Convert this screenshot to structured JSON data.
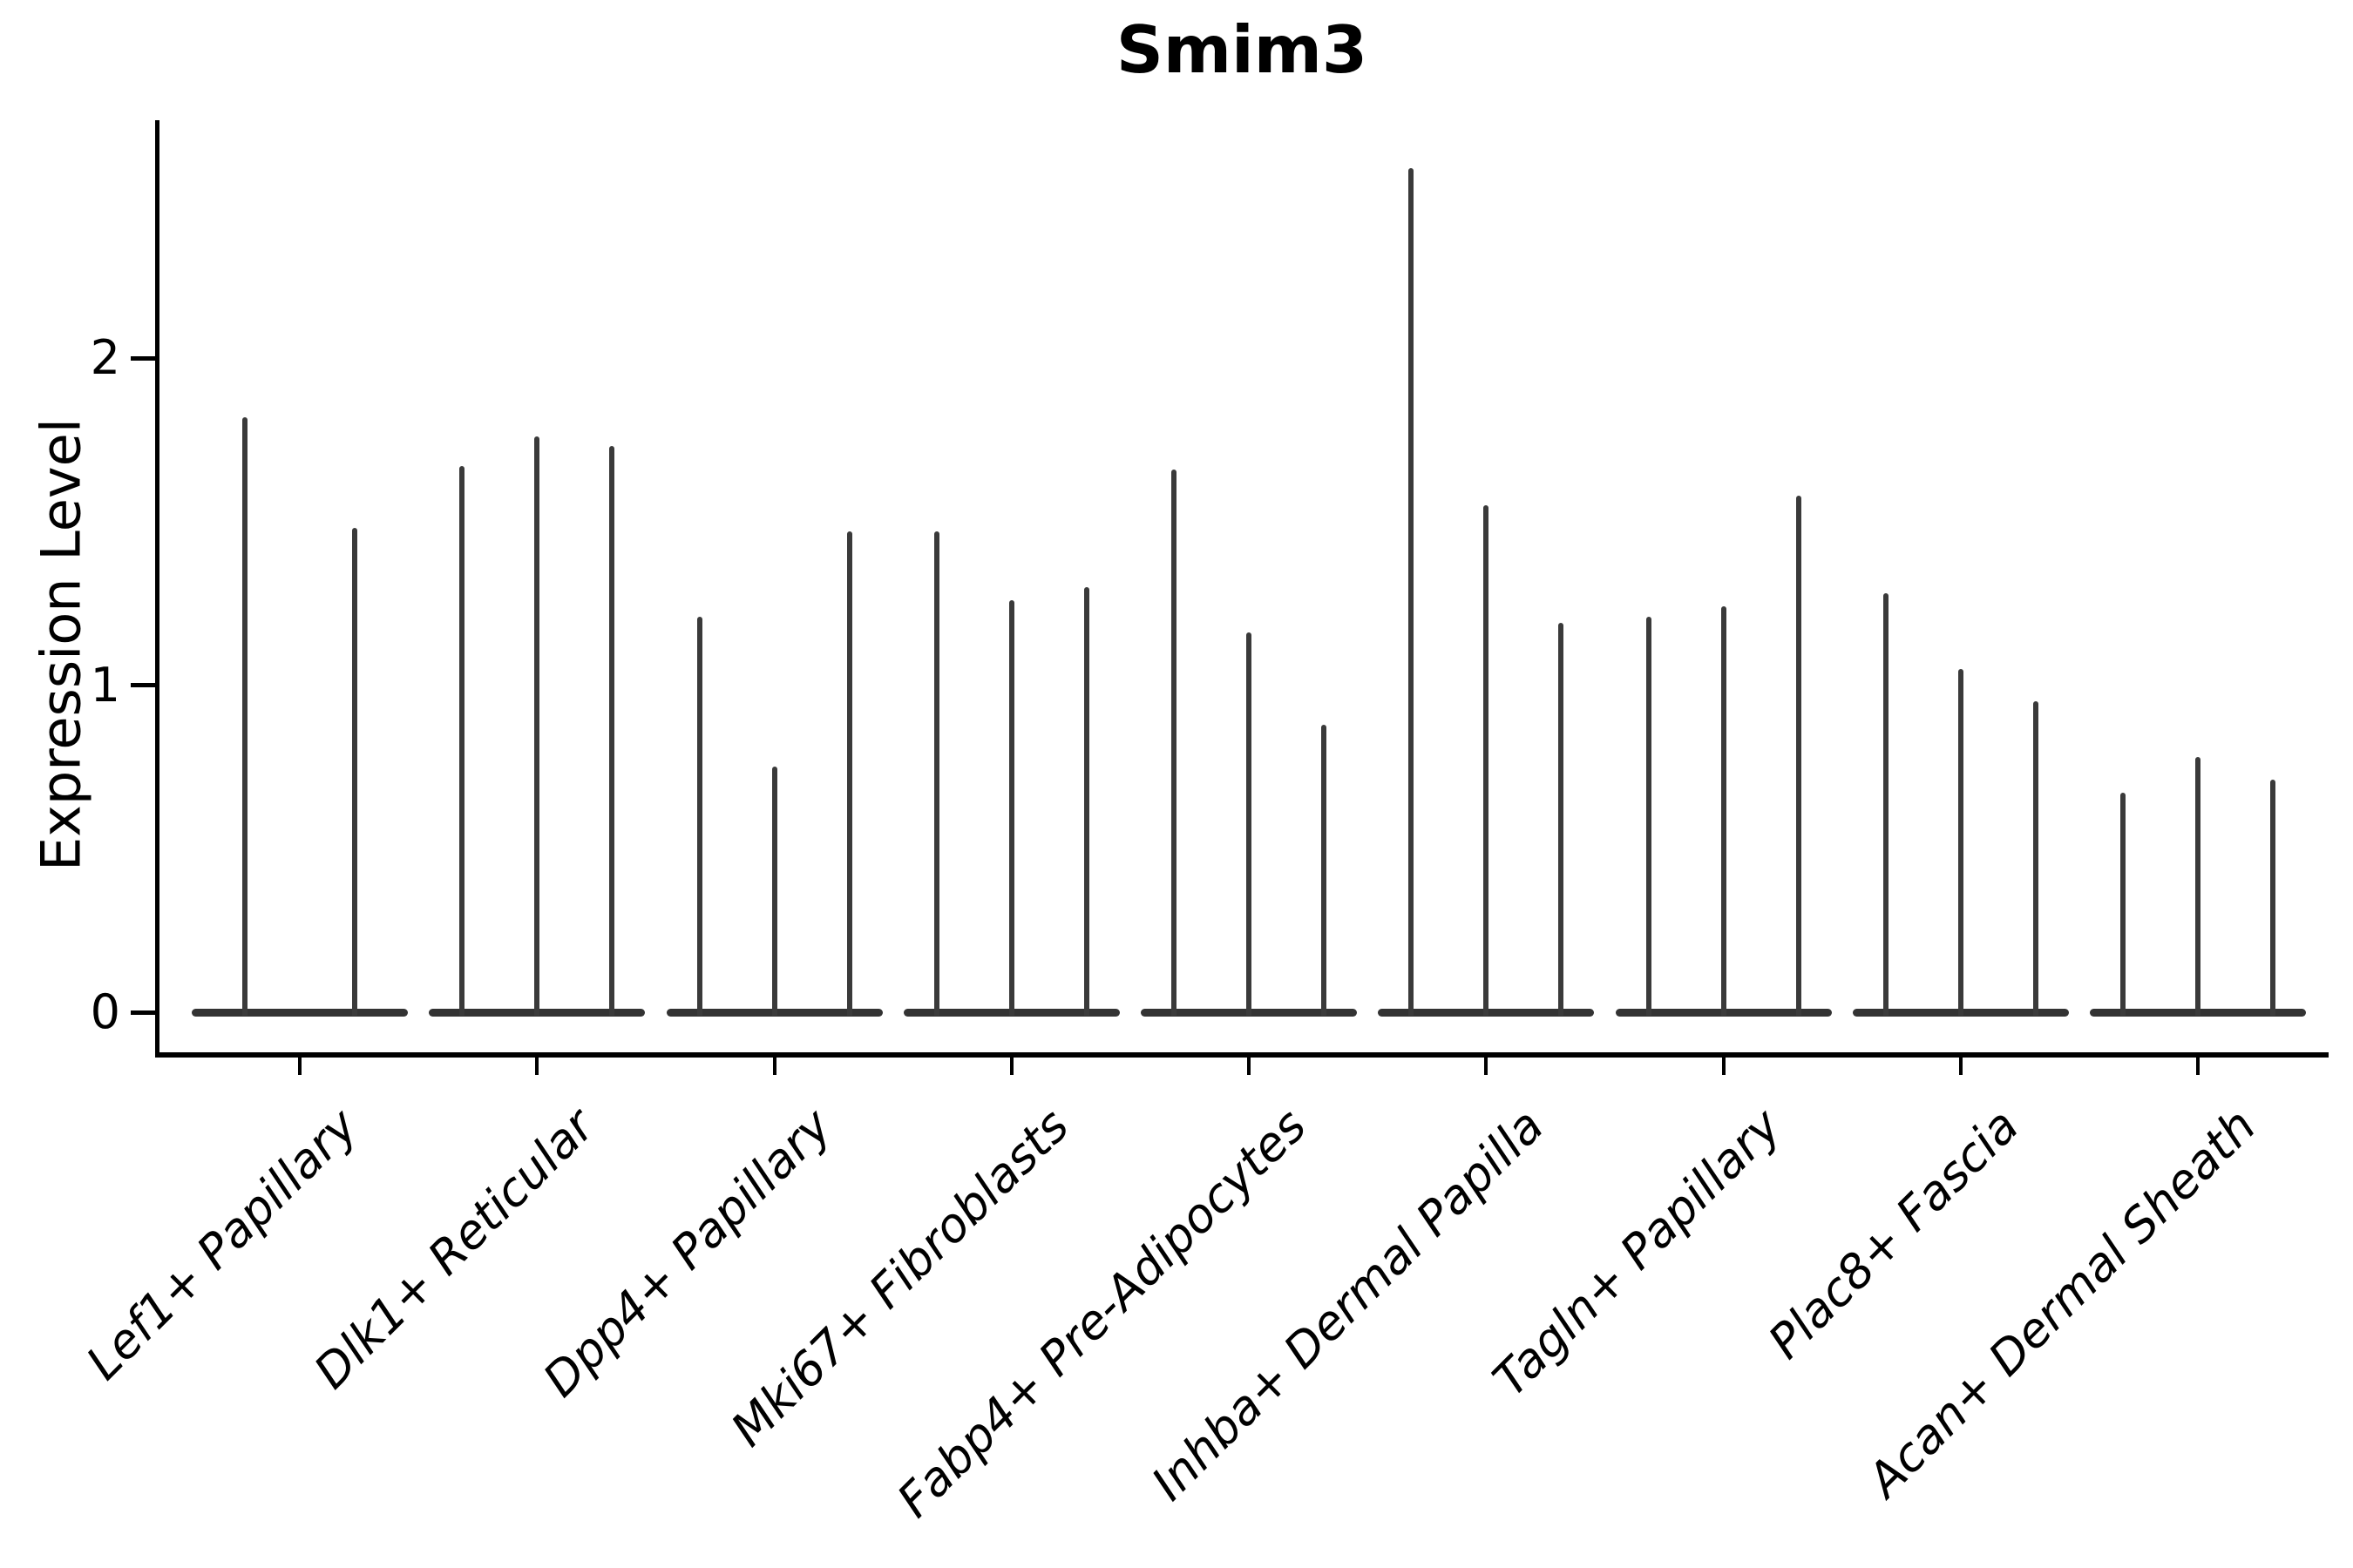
{
  "title": "Smim3",
  "y_axis": {
    "label": "Expression Level",
    "tick_labels": [
      "0",
      "1",
      "2"
    ]
  },
  "colors": {
    "violin_line": "#3a3a3a",
    "violin_base": "#333333",
    "axis": "#000000",
    "background": "#ffffff"
  },
  "chart_data": {
    "type": "violin",
    "title": "Smim3",
    "xlabel": "",
    "ylabel": "Expression Level",
    "ylim": [
      -0.12,
      2.72
    ],
    "yticks": [
      0,
      1,
      2
    ],
    "grid": false,
    "legend": false,
    "categories": [
      "Lef1+ Papillary",
      "Dlk1+ Reticular",
      "Dpp4+ Papillary",
      "Mki67+ Fibroblasts",
      "Fabp4+ Pre-Adipocytes",
      "Inhba+ Dermal Papilla",
      "Tagln+ Papillary",
      "Plac8+ Fascia",
      "Acan+ Dermal Sheath"
    ],
    "series": [
      {
        "category": "Lef1+ Papillary",
        "violin_count": 2,
        "spike_max_expression": [
          1.82,
          1.48
        ]
      },
      {
        "category": "Dlk1+ Reticular",
        "violin_count": 3,
        "spike_max_expression": [
          1.67,
          1.76,
          1.73
        ]
      },
      {
        "category": "Dpp4+ Papillary",
        "violin_count": 3,
        "spike_max_expression": [
          1.21,
          0.75,
          1.47
        ]
      },
      {
        "category": "Mki67+ Fibroblasts",
        "violin_count": 3,
        "spike_max_expression": [
          1.47,
          1.26,
          1.3
        ]
      },
      {
        "category": "Fabp4+ Pre-Adipocytes",
        "violin_count": 3,
        "spike_max_expression": [
          1.66,
          1.16,
          0.88
        ]
      },
      {
        "category": "Inhba+ Dermal Papilla",
        "violin_count": 3,
        "spike_max_expression": [
          2.58,
          1.55,
          1.19
        ]
      },
      {
        "category": "Tagln+ Papillary",
        "violin_count": 3,
        "spike_max_expression": [
          1.21,
          1.24,
          1.58
        ]
      },
      {
        "category": "Plac8+ Fascia",
        "violin_count": 3,
        "spike_max_expression": [
          1.28,
          1.05,
          0.95
        ]
      },
      {
        "category": "Acan+ Dermal Sheath",
        "violin_count": 3,
        "spike_max_expression": [
          0.67,
          0.78,
          0.71
        ]
      }
    ],
    "baseline_value": 0
  }
}
